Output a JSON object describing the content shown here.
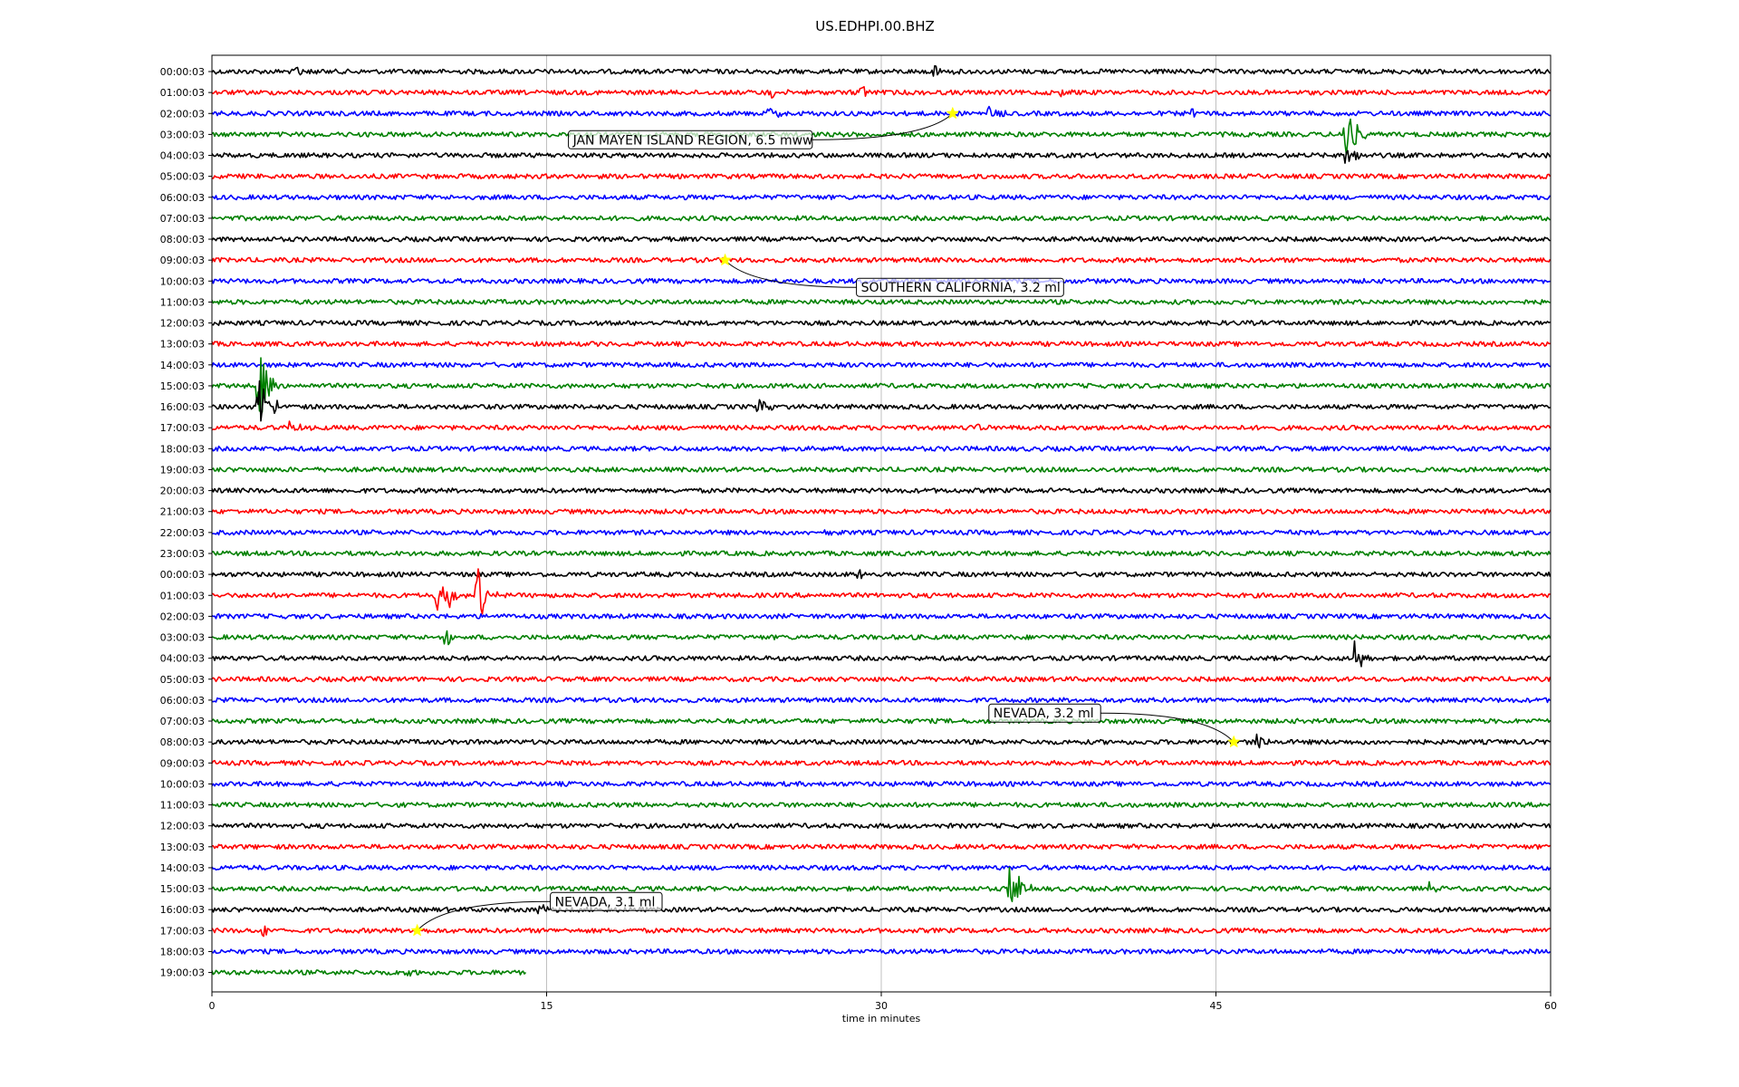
{
  "chart_data": {
    "type": "line",
    "title": "US.EDHPI.00.BHZ",
    "xlabel": "time in minutes",
    "xlim": [
      0,
      60
    ],
    "xticks": [
      "0",
      "15",
      "30",
      "45",
      "60"
    ],
    "grid": "vertical",
    "trace_colors": [
      "#000000",
      "#ff0000",
      "#0000ff",
      "#008000"
    ],
    "row_labels": [
      "00:00:03",
      "01:00:03",
      "02:00:03",
      "03:00:03",
      "04:00:03",
      "05:00:03",
      "06:00:03",
      "07:00:03",
      "08:00:03",
      "09:00:03",
      "10:00:03",
      "11:00:03",
      "12:00:03",
      "13:00:03",
      "14:00:03",
      "15:00:03",
      "16:00:03",
      "17:00:03",
      "18:00:03",
      "19:00:03",
      "20:00:03",
      "21:00:03",
      "22:00:03",
      "23:00:03",
      "00:00:03",
      "01:00:03",
      "02:00:03",
      "03:00:03",
      "04:00:03",
      "05:00:03",
      "06:00:03",
      "07:00:03",
      "08:00:03",
      "09:00:03",
      "10:00:03",
      "11:00:03",
      "12:00:03",
      "13:00:03",
      "14:00:03",
      "15:00:03",
      "16:00:03",
      "17:00:03",
      "18:00:03",
      "19:00:03"
    ],
    "last_row_end_minute": 14.1,
    "spikes": [
      {
        "row": 0,
        "minute": 3.8,
        "amp": 0.35
      },
      {
        "row": 0,
        "minute": 32.4,
        "amp": 0.35
      },
      {
        "row": 1,
        "minute": 29.0,
        "amp": 0.5
      },
      {
        "row": 1,
        "minute": 25.0,
        "amp": 0.3
      },
      {
        "row": 1,
        "minute": 38.0,
        "amp": 0.3
      },
      {
        "row": 2,
        "minute": 25.0,
        "amp": 0.4
      },
      {
        "row": 2,
        "minute": 34.8,
        "amp": 0.4
      },
      {
        "row": 2,
        "minute": 44.0,
        "amp": 0.35
      },
      {
        "row": 3,
        "minute": 50.8,
        "amp": 2.0
      },
      {
        "row": 4,
        "minute": 50.8,
        "amp": 1.2
      },
      {
        "row": 15,
        "minute": 2.1,
        "amp": 2.2
      },
      {
        "row": 16,
        "minute": 2.1,
        "amp": 1.5
      },
      {
        "row": 16,
        "minute": 2.8,
        "amp": 0.5
      },
      {
        "row": 16,
        "minute": 24.5,
        "amp": 0.4
      },
      {
        "row": 17,
        "minute": 3.5,
        "amp": 0.35
      },
      {
        "row": 17,
        "minute": 34.0,
        "amp": 0.3
      },
      {
        "row": 22,
        "minute": 27.5,
        "amp": 0.35
      },
      {
        "row": 24,
        "minute": 29.0,
        "amp": 0.3
      },
      {
        "row": 25,
        "minute": 10.1,
        "amp": 1.3
      },
      {
        "row": 25,
        "minute": 11.9,
        "amp": 1.6
      },
      {
        "row": 25,
        "minute": 10.6,
        "amp": 0.6
      },
      {
        "row": 27,
        "minute": 10.5,
        "amp": 0.6
      },
      {
        "row": 28,
        "minute": 51.2,
        "amp": 1.0
      },
      {
        "row": 32,
        "minute": 46.8,
        "amp": 0.5
      },
      {
        "row": 39,
        "minute": 35.8,
        "amp": 1.8
      },
      {
        "row": 39,
        "minute": 54.5,
        "amp": 0.3
      },
      {
        "row": 40,
        "minute": 14.7,
        "amp": 0.3
      },
      {
        "row": 41,
        "minute": 2.3,
        "amp": 0.3
      },
      {
        "row": 43,
        "minute": 8.4,
        "amp": 0.3
      }
    ],
    "events": [
      {
        "label": "JAN MAYEN ISLAND REGION, 6.5 mww",
        "row": 2,
        "minute": 33.2,
        "label_side": "below-left"
      },
      {
        "label": "SOUTHERN CALIFORNIA, 3.2 ml",
        "row": 9,
        "minute": 23.0,
        "label_side": "below-right"
      },
      {
        "label": "NEVADA, 3.2 ml",
        "row": 32,
        "minute": 45.8,
        "label_side": "above-left"
      },
      {
        "label": "NEVADA, 3.1 ml",
        "row": 41,
        "minute": 9.2,
        "label_side": "above-right"
      }
    ],
    "event_marker_color": "#ffff00"
  }
}
